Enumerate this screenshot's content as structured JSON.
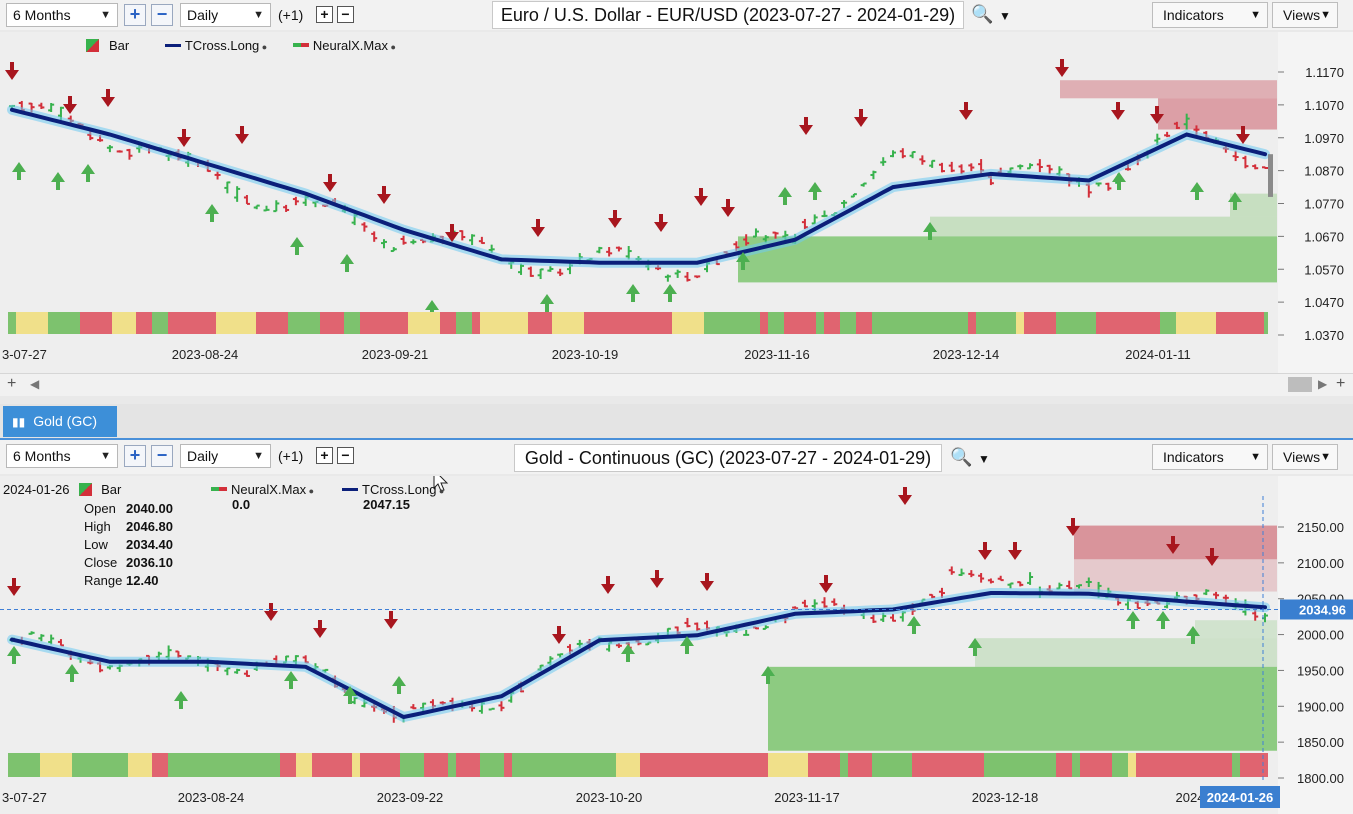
{
  "top_toolbar": {
    "period": "6 Months",
    "interval": "Daily",
    "offset": "(+1)",
    "title": "Euro / U.S. Dollar - EUR/USD (2023-07-27 - 2024-01-29)",
    "indicators_label": "Indicators",
    "views_label": "Views",
    "search_icon": "magnifier-icon"
  },
  "top_legend": {
    "bar": "Bar",
    "tcross": "TCross.Long",
    "neuralx": "NeuralX.Max"
  },
  "bottom_tab": {
    "label": "Gold (GC)"
  },
  "bottom_toolbar": {
    "period": "6 Months",
    "interval": "Daily",
    "offset": "(+1)",
    "title": "Gold - Continuous (GC) (2023-07-27 - 2024-01-29)",
    "indicators_label": "Indicators",
    "views_label": "Views"
  },
  "bottom_legend": {
    "date": "2024-01-26",
    "bar": "Bar",
    "neuralx": "NeuralX.Max",
    "neuralx_value": "0.0",
    "tcross": "TCross.Long",
    "tcross_value": "2047.15",
    "open_label": "Open",
    "open_value": "2040.00",
    "high_label": "High",
    "high_value": "2046.80",
    "low_label": "Low",
    "low_value": "2034.40",
    "close_label": "Close",
    "close_value": "2036.10",
    "range_label": "Range",
    "range_value": "12.40"
  },
  "colors": {
    "up": "#37b24d",
    "down": "#d32f3a",
    "tcross": "#0b1f7a",
    "glow": "#6ecbf2",
    "arrow_up": "#4caf50",
    "arrow_down": "#a8161e",
    "band_red": "#e06470",
    "band_green": "#7dc26e",
    "band_yellow": "#f0e08a"
  },
  "chart_data": [
    {
      "type": "line",
      "title": "Euro / U.S. Dollar - EUR/USD (2023-07-27 - 2024-01-29)",
      "ylim": [
        1.037,
        1.117
      ],
      "y_ticks": [
        "1.1170",
        "1.1070",
        "1.0970",
        "1.0870",
        "1.0770",
        "1.0670",
        "1.0570",
        "1.0470",
        "1.0370"
      ],
      "x_ticks": [
        "3-07-27",
        "2023-08-24",
        "2023-09-21",
        "2023-10-19",
        "2023-11-16",
        "2023-12-14",
        "2024-01-11"
      ],
      "series": [
        {
          "name": "TCross.Long",
          "x": [
            0,
            10,
            20,
            30,
            40,
            50,
            60,
            70,
            80,
            90,
            100,
            110,
            120,
            128
          ],
          "values": [
            1.1055,
            1.098,
            1.089,
            1.08,
            1.069,
            1.06,
            1.059,
            1.059,
            1.066,
            1.082,
            1.086,
            1.084,
            1.098,
            1.092
          ]
        }
      ]
    },
    {
      "type": "line",
      "title": "Gold - Continuous (GC) (2023-07-27 - 2024-01-29)",
      "ylim": [
        1800,
        2150
      ],
      "y_ticks": [
        "2150.00",
        "2100.00",
        "2050.00",
        "2000.00",
        "1950.00",
        "1900.00",
        "1850.00",
        "1800.00"
      ],
      "x_ticks": [
        "3-07-27",
        "2023-08-24",
        "2023-09-22",
        "2023-10-20",
        "2023-11-17",
        "2023-12-18",
        "2024"
      ],
      "last_price": "2034.96",
      "cursor_date": "2024-01-26",
      "series": [
        {
          "name": "TCross.Long",
          "x": [
            0,
            10,
            20,
            30,
            40,
            50,
            60,
            70,
            80,
            90,
            100,
            110,
            120,
            128
          ],
          "values": [
            1993,
            1962,
            1962,
            1955,
            1885,
            1914,
            1992,
            1999,
            2029,
            2035,
            2058,
            2057,
            2046,
            2038
          ]
        }
      ]
    }
  ]
}
